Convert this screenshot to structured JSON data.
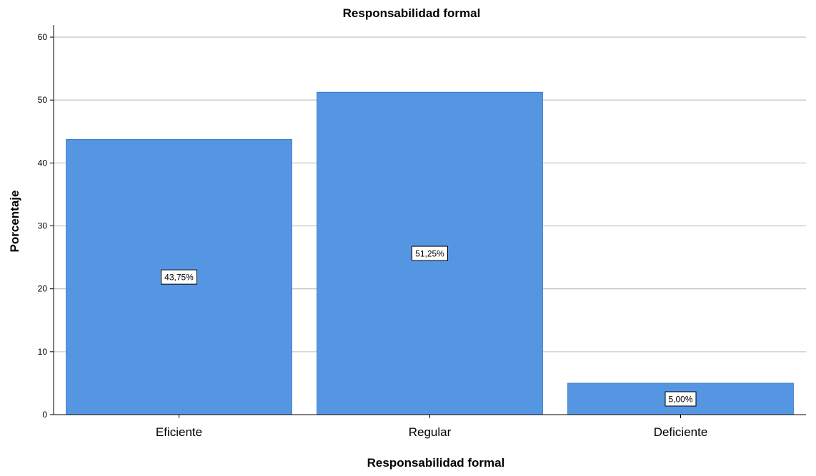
{
  "chart_data": {
    "type": "bar",
    "title": "Responsabilidad formal",
    "xlabel": "Responsabilidad formal",
    "ylabel": "Porcentaje",
    "categories": [
      "Eficiente",
      "Regular",
      "Deficiente"
    ],
    "values": [
      43.75,
      51.25,
      5.0
    ],
    "data_labels": [
      "43,75%",
      "51,25%",
      "5,00%"
    ],
    "ylim": [
      0,
      62.5
    ],
    "yticks": [
      0,
      10,
      20,
      30,
      40,
      50,
      60
    ],
    "ytick_labels": [
      "0",
      "10",
      "20",
      "30",
      "40",
      "50",
      "60"
    ],
    "grid": true,
    "legend": "none",
    "colors": {
      "bar": "#5596E3",
      "bar_stroke": "#2F6FBF",
      "grid": "#C8C8C8",
      "axis": "#000000"
    }
  }
}
